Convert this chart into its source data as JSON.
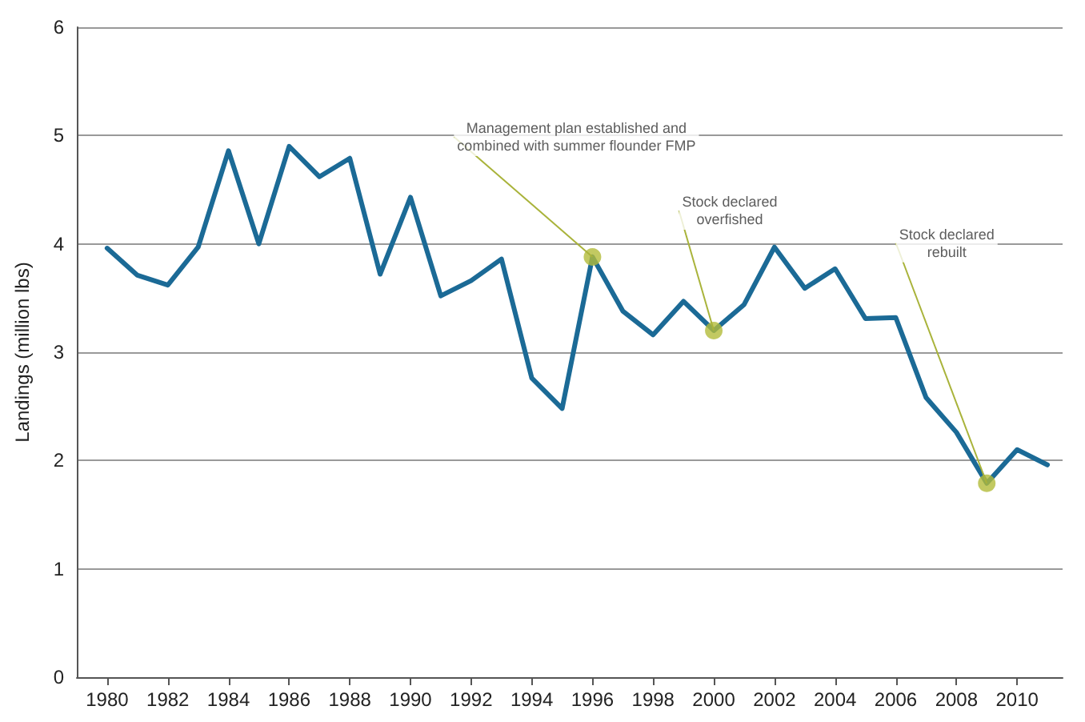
{
  "chart_data": {
    "type": "line",
    "ylabel": "Landings (million lbs)",
    "x": [
      1980,
      1981,
      1982,
      1983,
      1984,
      1985,
      1986,
      1987,
      1988,
      1989,
      1990,
      1991,
      1992,
      1993,
      1994,
      1995,
      1996,
      1997,
      1998,
      1999,
      2000,
      2001,
      2002,
      2003,
      2004,
      2005,
      2006,
      2007,
      2008,
      2009,
      2010,
      2011
    ],
    "series": [
      {
        "color": "#1b6a96",
        "marker": "none",
        "values": [
          3.96,
          3.71,
          3.62,
          3.97,
          4.86,
          4.0,
          4.9,
          4.62,
          4.79,
          3.72,
          4.43,
          3.52,
          3.66,
          3.86,
          2.76,
          2.48,
          3.88,
          3.38,
          3.16,
          3.47,
          3.2,
          3.44,
          3.97,
          3.59,
          3.77,
          3.31,
          3.32,
          2.58,
          2.26,
          1.79,
          2.1,
          1.96
        ]
      },
      {
        "type": "scatter",
        "color": "#b3bb3a",
        "marker": "circle",
        "x": [
          1996,
          2000,
          2009
        ],
        "values": [
          3.88,
          3.2,
          1.79
        ]
      }
    ],
    "annotations": [
      {
        "text": "Management plan established and\ncombined with summer flounder FMP",
        "x": 1996,
        "y": 3.88
      },
      {
        "text": "Stock declared\noverfished",
        "x": 2000,
        "y": 3.2
      },
      {
        "text": "Stock declared\nrebuilt",
        "x": 2009,
        "y": 1.79
      }
    ],
    "xlim": [
      1979,
      2011.5
    ],
    "xticks": [
      1980,
      1982,
      1984,
      1986,
      1988,
      1990,
      1992,
      1994,
      1996,
      1998,
      2000,
      2002,
      2004,
      2006,
      2008,
      2010
    ],
    "ylim": [
      0,
      6
    ],
    "yticks": [
      0,
      1,
      2,
      3,
      4,
      5,
      6
    ],
    "grid": "y",
    "line_style": "solid"
  }
}
